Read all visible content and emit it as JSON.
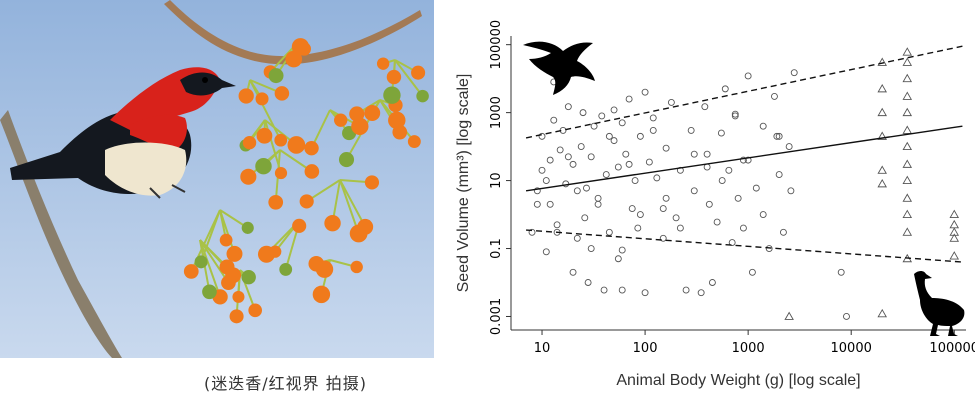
{
  "left_panel": {
    "caption": "(迷迭香/红视界 拍摄)"
  },
  "colors": {
    "sky_top": "#93b3dc",
    "sky_bottom": "#c9d9ee",
    "berry_orange": "#f07a1c",
    "berry_green": "#7ea53a",
    "stem_green": "#a9c247",
    "bird_red": "#d8221b",
    "bird_dark": "#14181f",
    "points": "#555555"
  },
  "chart_data": {
    "type": "scatter",
    "xlabel": "Animal Body Weight (g) [log scale]",
    "ylabel": "Seed Volume (mm³) [log scale]",
    "xscale": "log",
    "yscale": "log",
    "xlim": [
      5,
      130000
    ],
    "ylim": [
      0.0004,
      180000
    ],
    "xticks": [
      10,
      100,
      1000,
      10000,
      100000
    ],
    "xtick_labels": [
      "10",
      "100",
      "1000",
      "10000",
      "100000"
    ],
    "yticks": [
      0.001,
      0.1,
      10,
      1000,
      100000
    ],
    "ytick_labels": [
      "0.001",
      "0.1",
      "10",
      "1000",
      "100000"
    ],
    "grid": false,
    "series": [
      {
        "marker": "circle",
        "x": [
          8,
          9,
          10,
          10,
          11,
          12,
          12,
          13,
          14,
          15,
          16,
          17,
          18,
          20,
          20,
          22,
          24,
          25,
          27,
          30,
          30,
          32,
          35,
          38,
          40,
          42,
          45,
          50,
          50,
          55,
          60,
          60,
          65,
          70,
          75,
          80,
          85,
          90,
          100,
          100,
          110,
          120,
          130,
          150,
          160,
          180,
          200,
          220,
          250,
          280,
          300,
          350,
          380,
          400,
          450,
          500,
          550,
          600,
          650,
          700,
          750,
          800,
          900,
          1000,
          1100,
          1200,
          1400,
          1600,
          1800,
          2000,
          2200,
          2500,
          2800,
          9,
          11,
          14,
          18,
          22,
          28,
          35,
          45,
          55,
          70,
          90,
          120,
          160,
          220,
          300,
          420,
          560,
          750,
          1000,
          1400,
          1900,
          2600,
          13,
          26,
          60,
          150,
          400,
          900,
          2000,
          8000,
          9000
        ],
        "y": [
          0.3,
          5,
          20,
          200,
          0.08,
          40,
          2,
          600,
          0.5,
          80,
          300,
          8,
          1500,
          0.02,
          30,
          0.2,
          100,
          1000,
          6,
          0.1,
          50,
          400,
          3,
          800,
          0.006,
          15,
          0.3,
          150,
          1200,
          25,
          0.09,
          500,
          60,
          2500,
          1.5,
          10,
          0.4,
          200,
          4000,
          0.005,
          35,
          700,
          12,
          0.2,
          90,
          2000,
          0.8,
          20,
          0.006,
          300,
          5,
          0.005,
          1500,
          60,
          0.01,
          0.6,
          250,
          5000,
          20,
          0.15,
          900,
          3,
          40,
          12000,
          0.02,
          6,
          400,
          0.1,
          3000,
          15,
          0.3,
          100,
          15000,
          2,
          10,
          0.3,
          50,
          5,
          0.01,
          2,
          200,
          0.05,
          30,
          1,
          300,
          3,
          0.4,
          60,
          2,
          10,
          800,
          40,
          1,
          200,
          5,
          8000,
          0.8,
          0.006,
          1.5,
          25,
          0.4,
          200,
          0.02,
          0.001
        ]
      },
      {
        "marker": "triangle",
        "x": [
          20000,
          20000,
          20000,
          20000,
          20000,
          20000,
          20000,
          35000,
          35000,
          35000,
          35000,
          35000,
          35000,
          35000,
          35000,
          35000,
          35000,
          35000,
          35000,
          35000,
          100000,
          100000,
          100000,
          100000,
          100000,
          2500
        ],
        "y": [
          30000,
          5000,
          1000,
          200,
          20,
          8,
          0.0012,
          60000,
          30000,
          10000,
          3000,
          1000,
          300,
          100,
          30,
          10,
          3,
          1,
          0.3,
          0.05,
          1,
          0.5,
          0.3,
          0.2,
          0.06,
          0.001
        ]
      }
    ],
    "lines": [
      {
        "style": "solid",
        "x": [
          7,
          120000
        ],
        "y": [
          5,
          400
        ]
      },
      {
        "style": "dashed",
        "x": [
          7,
          120000
        ],
        "y": [
          180,
          90000
        ]
      },
      {
        "style": "dashed",
        "x": [
          7,
          120000
        ],
        "y": [
          0.35,
          0.04
        ]
      }
    ],
    "icons": [
      "bird-silhouette-icon",
      "cassowary-silhouette-icon"
    ]
  }
}
